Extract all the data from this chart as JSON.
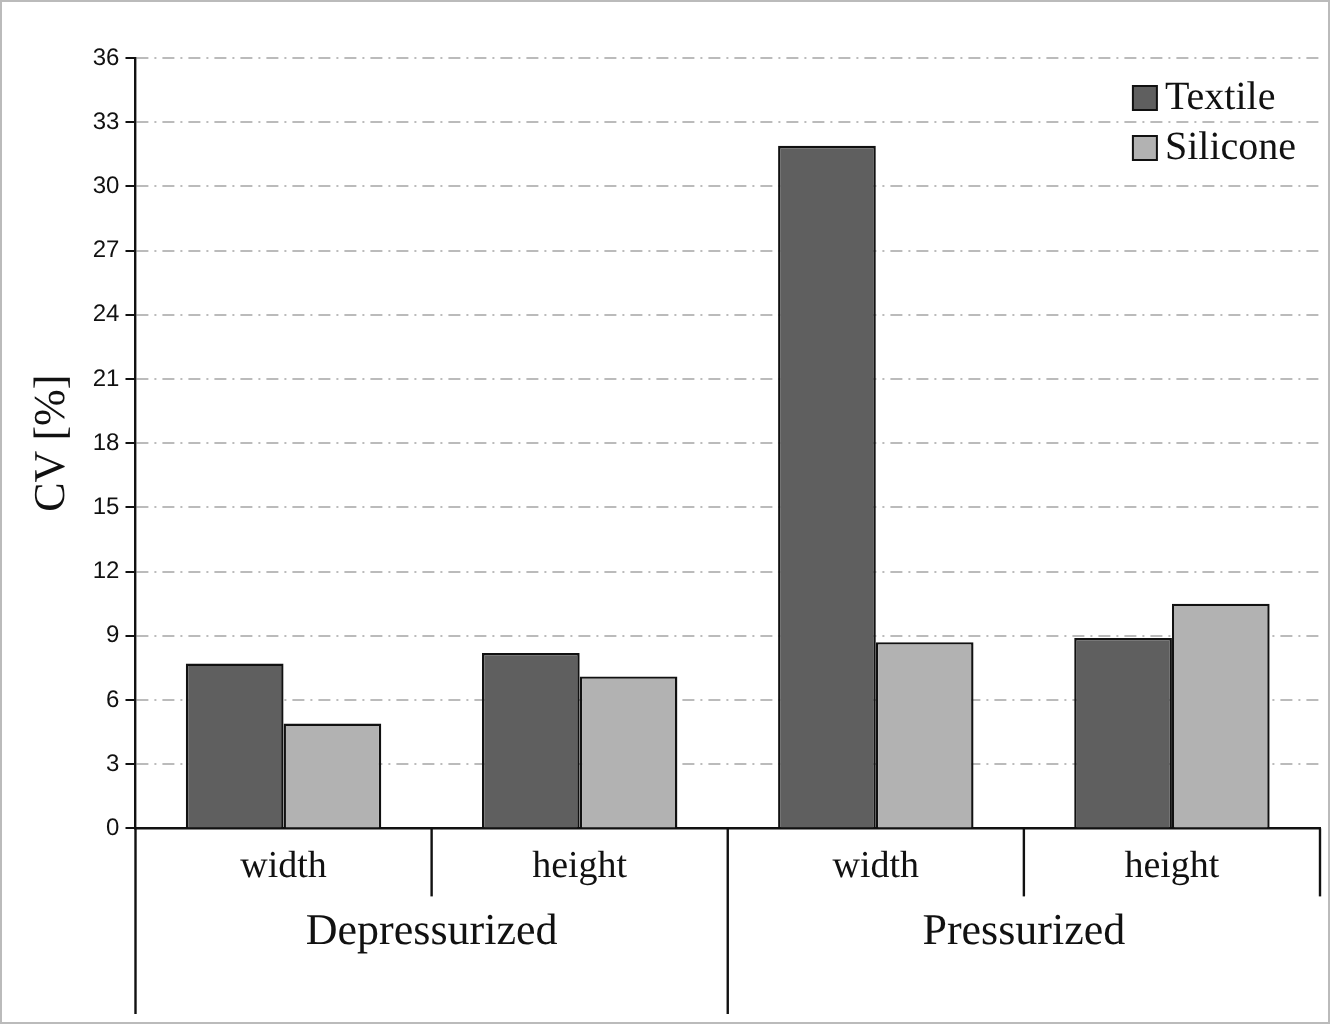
{
  "chart_data": {
    "type": "bar",
    "ylabel": "CV [%]",
    "categories": [
      "width",
      "height",
      "width",
      "height"
    ],
    "series": [
      {
        "name": "Textile",
        "color": "#5f5f5f",
        "values": [
          7.7,
          8.2,
          31.9,
          8.9
        ]
      },
      {
        "name": "Silicone",
        "color": "#b2b2b2",
        "values": [
          4.9,
          7.1,
          8.7,
          10.5
        ]
      }
    ],
    "ylim": [
      0,
      36
    ],
    "yticks": [
      0,
      3,
      6,
      9,
      12,
      15,
      18,
      21,
      24,
      27,
      30,
      33,
      36
    ],
    "grid": "y",
    "legend": "top right",
    "annotations": [
      "Depressurized",
      "Pressurized"
    ]
  }
}
